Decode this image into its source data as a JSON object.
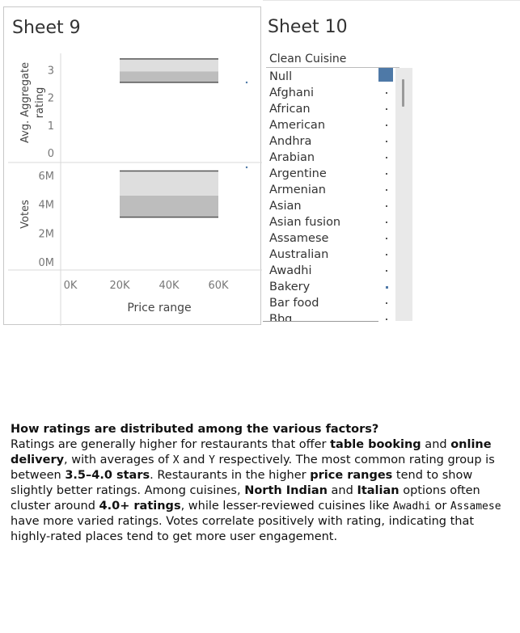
{
  "sheet9": {
    "title": "Sheet 9",
    "x_axis_label": "Price range",
    "x_ticks": [
      "0K",
      "20K",
      "40K",
      "60K"
    ],
    "rating_axis_label": "Avg. Aggregate rating",
    "rating_ticks": [
      "0",
      "1",
      "2",
      "3"
    ],
    "votes_axis_label": "Votes",
    "votes_ticks": [
      "0M",
      "2M",
      "4M",
      "6M"
    ]
  },
  "chart_data": {
    "type": "area",
    "x": [
      20000,
      60000
    ],
    "xlim": [
      0,
      80000
    ],
    "panels": [
      {
        "ylabel": "Avg. Aggregate rating",
        "ylim": [
          0,
          3.6
        ],
        "bands": [
          {
            "from": 2.55,
            "to": 2.95,
            "shade": "#bdbdbd"
          },
          {
            "from": 2.95,
            "to": 3.4,
            "shade": "#dedede"
          }
        ],
        "lines": [
          2.55,
          3.4
        ]
      },
      {
        "ylabel": "Votes",
        "ylim": [
          0,
          7000000
        ],
        "bands": [
          {
            "from": 3100000,
            "to": 4600000,
            "shade": "#bdbdbd"
          },
          {
            "from": 4600000,
            "to": 6300000,
            "shade": "#dedede"
          }
        ],
        "lines": [
          3100000,
          6300000
        ]
      }
    ],
    "xlabel": "Price range",
    "grid": false,
    "accent": "#4e79a7"
  },
  "sheet10": {
    "title": "Sheet 10",
    "legend_title": "Clean Cuisine",
    "items": [
      "Null",
      "Afghani",
      "African",
      "American",
      "Andhra",
      "Arabian",
      "Argentine",
      "Armenian",
      "Asian",
      "Asian fusion",
      "Assamese",
      "Australian",
      "Awadhi",
      "Bakery",
      "Bar food",
      "Bbq"
    ],
    "swatch_color": "#4e79a7"
  },
  "caption": {
    "heading": "How ratings are distributed among the various factors?",
    "p1": "Ratings are generally higher for restaurants that offer ",
    "b1": "table booking",
    "p2": " and ",
    "b2": "online delivery",
    "p3": ", with averages of ",
    "c1": "X",
    "p4": " and ",
    "c2": "Y",
    "p5": " respectively. The most common rating group is between ",
    "b3": "3.5–4.0 stars",
    "p6": ". Restaurants in the higher ",
    "b4": "price ranges",
    "p7": " tend to show slightly better ratings. Among cuisines, ",
    "b5": "North Indian",
    "p8": " and ",
    "b6": "Italian",
    "p9": " options often cluster around ",
    "b7": "4.0+ ratings",
    "p10": ", while lesser-reviewed cuisines like ",
    "c3": "Awadhi",
    "p11": " or ",
    "c4": "Assamese",
    "p12": " have more varied ratings. Votes correlate positively with rating, indicating that highly-rated places tend to get more user engagement."
  }
}
